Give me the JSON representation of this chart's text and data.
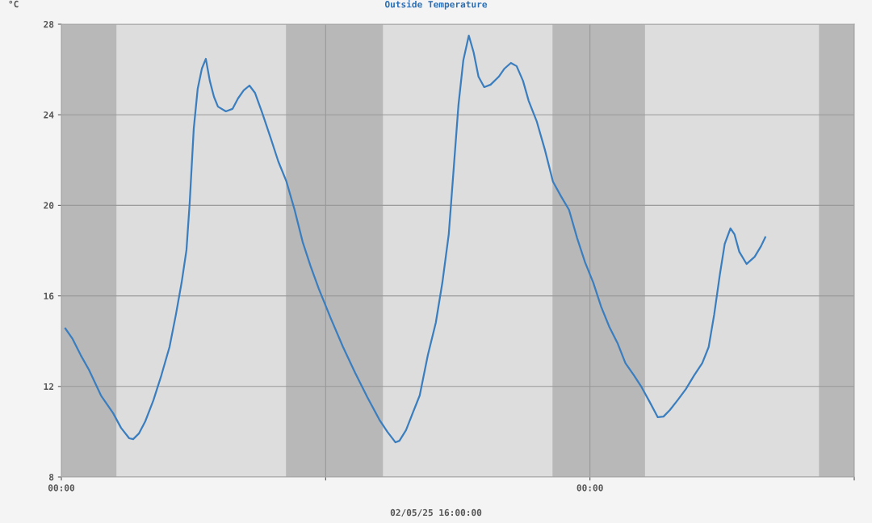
{
  "chart_data": {
    "type": "line",
    "title": "Outside Temperature",
    "xlabel": "02/05/25 16:00:00",
    "ylabel": "°C",
    "xlim": [
      0,
      36
    ],
    "xticks": [
      {
        "value": 0,
        "label": "00:00"
      },
      {
        "value": 12,
        "label": null
      },
      {
        "value": 24,
        "label": "00:00"
      },
      {
        "value": 36,
        "label": null
      }
    ],
    "ylim": [
      8,
      28
    ],
    "yticks": [
      8,
      12,
      16,
      20,
      24,
      28
    ],
    "grid": true,
    "marker": "none",
    "line_style": "solid",
    "bands": [
      {
        "axis": "x",
        "from": 0,
        "to": 2.5,
        "color": "#b8b8b8"
      },
      {
        "axis": "x",
        "from": 10.2,
        "to": 14.6,
        "color": "#b8b8b8"
      },
      {
        "axis": "x",
        "from": 22.3,
        "to": 26.5,
        "color": "#b8b8b8"
      },
      {
        "axis": "x",
        "from": 34.4,
        "to": 36,
        "color": "#b8b8b8"
      }
    ],
    "series": [
      {
        "color": "#3a7ebf",
        "x": [
          0.18,
          0.51,
          0.88,
          1.25,
          1.8,
          2.35,
          2.71,
          3.08,
          3.26,
          3.52,
          3.81,
          4.18,
          4.54,
          4.91,
          5.2,
          5.46,
          5.68,
          5.83,
          6.01,
          6.19,
          6.38,
          6.56,
          6.74,
          6.93,
          7.11,
          7.47,
          7.77,
          8.02,
          8.28,
          8.54,
          8.79,
          9.12,
          9.49,
          9.85,
          10.22,
          10.59,
          10.96,
          11.32,
          11.69,
          12.24,
          12.79,
          13.34,
          13.89,
          14.44,
          14.8,
          15.17,
          15.35,
          15.65,
          15.98,
          16.27,
          16.64,
          17.0,
          17.3,
          17.59,
          17.81,
          18.03,
          18.25,
          18.5,
          18.72,
          18.94,
          19.2,
          19.49,
          19.86,
          20.12,
          20.41,
          20.67,
          20.96,
          21.22,
          21.58,
          21.95,
          22.32,
          22.68,
          23.05,
          23.42,
          23.78,
          24.15,
          24.51,
          24.88,
          25.25,
          25.61,
          26.0,
          26.35,
          26.71,
          27.08,
          27.34,
          27.63,
          28.0,
          28.36,
          28.73,
          29.1,
          29.39,
          29.64,
          29.9,
          30.12,
          30.38,
          30.56,
          30.78,
          31.11,
          31.48,
          31.77,
          31.96
        ],
        "values": [
          14.56,
          14.1,
          13.38,
          12.74,
          11.6,
          10.82,
          10.17,
          9.71,
          9.67,
          9.92,
          10.46,
          11.39,
          12.49,
          13.74,
          15.17,
          16.59,
          18.02,
          20.16,
          23.37,
          25.15,
          26.04,
          26.47,
          25.5,
          24.79,
          24.36,
          24.15,
          24.26,
          24.72,
          25.08,
          25.29,
          24.97,
          24.08,
          23.01,
          21.94,
          21.05,
          19.8,
          18.37,
          17.3,
          16.31,
          14.99,
          13.74,
          12.6,
          11.53,
          10.53,
          10.0,
          9.53,
          9.6,
          10.07,
          10.89,
          11.6,
          13.38,
          14.81,
          16.59,
          18.73,
          21.58,
          24.43,
          26.4,
          27.5,
          26.75,
          25.68,
          25.22,
          25.33,
          25.68,
          26.04,
          26.29,
          26.15,
          25.5,
          24.61,
          23.72,
          22.47,
          21.05,
          20.41,
          19.8,
          18.55,
          17.48,
          16.59,
          15.52,
          14.63,
          13.92,
          13.03,
          12.49,
          11.96,
          11.32,
          10.64,
          10.67,
          10.96,
          11.42,
          11.89,
          12.49,
          13.03,
          13.74,
          15.17,
          16.95,
          18.3,
          18.98,
          18.73,
          17.95,
          17.41,
          17.73,
          18.2,
          18.59
        ]
      }
    ]
  }
}
